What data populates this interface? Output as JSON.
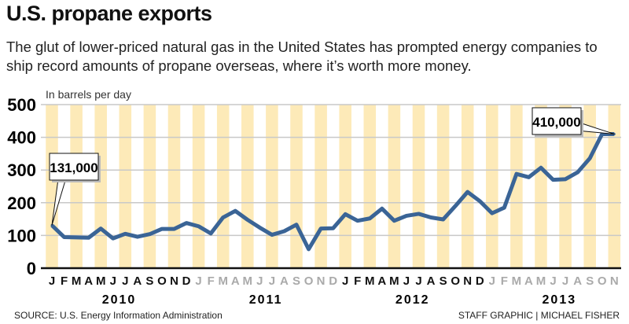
{
  "title": "U.S. propane exports",
  "subtitle": "The glut of lower-priced natural gas in the United States has prompted energy companies to ship record amounts of propane overseas, where it’s worth more money.",
  "source": "SOURCE: U.S. Energy Information Administration",
  "credit": "STAFF GRAPHIC | MICHAEL FISHER",
  "colors": {
    "line": "#3a6496",
    "band": "#fdeab8",
    "grid": "#c8c8c8"
  },
  "chart_data": {
    "type": "line",
    "title": "U.S. propane exports",
    "ylabel": "In barrels per day",
    "ylim": [
      0,
      500
    ],
    "yticks": [
      0,
      100,
      200,
      300,
      400,
      500
    ],
    "grid": true,
    "month_labels": [
      "J",
      "F",
      "M",
      "A",
      "M",
      "J",
      "J",
      "A",
      "S",
      "O",
      "N",
      "D"
    ],
    "years": [
      "2010",
      "2011",
      "2012",
      "2013"
    ],
    "series": [
      {
        "values": [
          131,
          95,
          94,
          93,
          121,
          91,
          105,
          96,
          104,
          120,
          120,
          138,
          128,
          106,
          155,
          175,
          148,
          124,
          102,
          113,
          133,
          58,
          121,
          122,
          165,
          145,
          152,
          182,
          145,
          160,
          166,
          155,
          149,
          190,
          233,
          205,
          168,
          185,
          288,
          278,
          307,
          270,
          272,
          293,
          336,
          410,
          410
        ]
      }
    ],
    "annotations": [
      {
        "index": 0,
        "text": "131,000"
      },
      {
        "index": 46,
        "text": "410,000"
      }
    ]
  }
}
